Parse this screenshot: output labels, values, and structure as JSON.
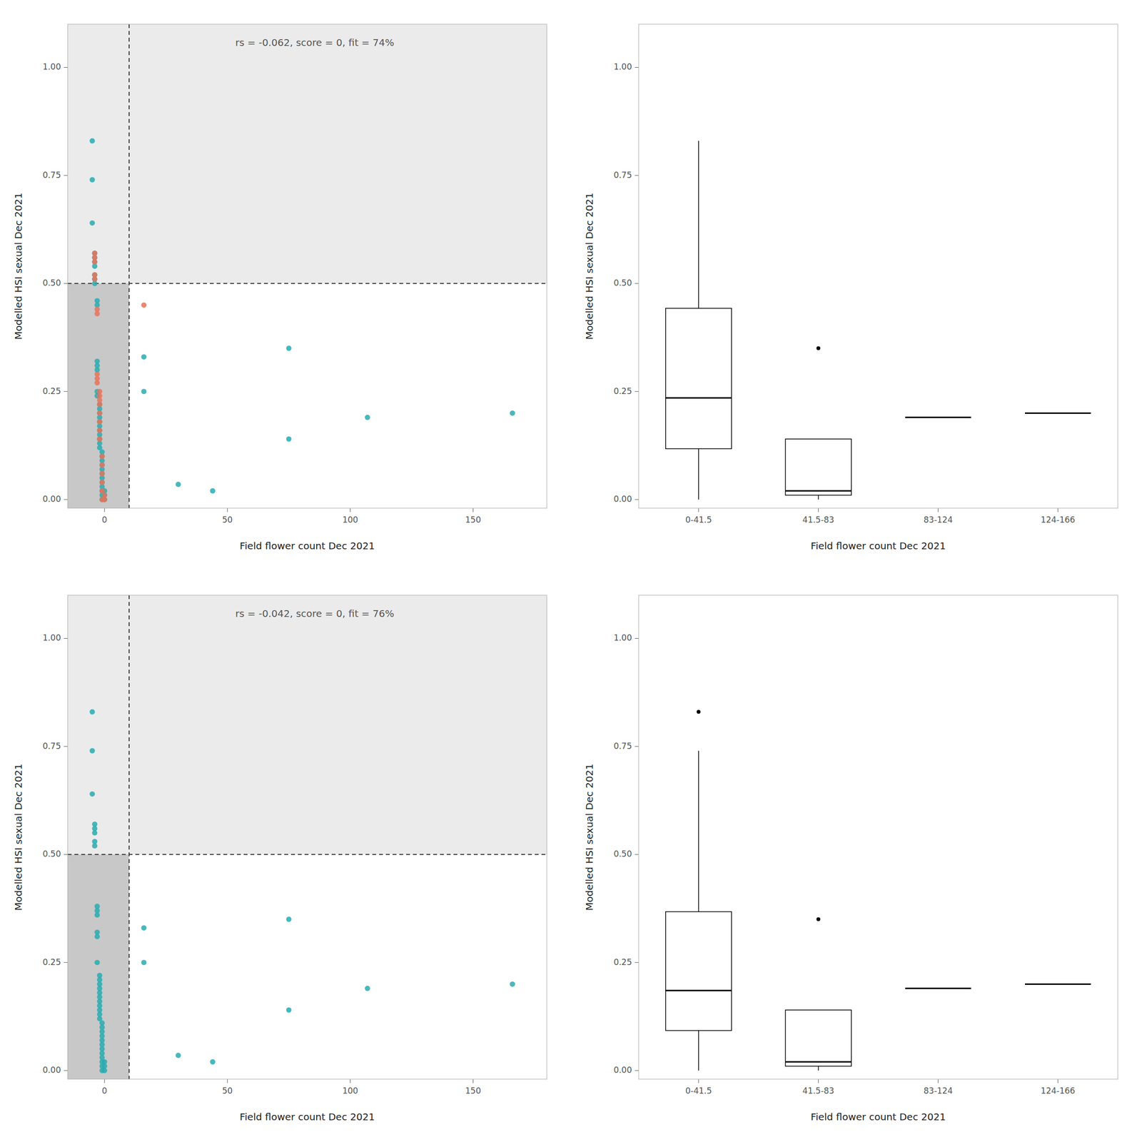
{
  "chart_data": [
    {
      "type": "scatter",
      "annotation": "rs = -0.062, score = 0, fit = 74%",
      "xlabel": "Field flower count Dec 2021",
      "ylabel": "Modelled HSI sexual Dec 2021",
      "xlim": [
        -15,
        180
      ],
      "ylim": [
        -0.02,
        1.1
      ],
      "xticks": [
        0,
        50,
        100,
        150
      ],
      "yticks": [
        {
          "value": 0,
          "label": "0.00"
        },
        {
          "value": 0.25,
          "label": "0.25"
        },
        {
          "value": 0.5,
          "label": "0.50"
        },
        {
          "value": 0.75,
          "label": "0.75"
        },
        {
          "value": 1,
          "label": "1.00"
        }
      ],
      "vline": 10,
      "hline": 0.5,
      "shade_colors": [
        "#EBEBEB",
        "#C8C8C8"
      ],
      "series": [
        {
          "color": "#29ABB0",
          "x": [
            -5,
            -5,
            -5,
            -4,
            -4,
            -4,
            -4,
            -4,
            -4,
            -4,
            -3,
            -3,
            -3,
            -3,
            -3,
            -3,
            -3,
            -2,
            -2,
            -2,
            -2,
            -2,
            -2,
            -2,
            -2,
            -2,
            -2,
            -2,
            -1,
            -1,
            -1,
            -1,
            -1,
            -1,
            -1,
            -1,
            -1,
            -1,
            -1,
            -1,
            0,
            0,
            0,
            16,
            16,
            30,
            44,
            75,
            75,
            107,
            166
          ],
          "values": [
            0.83,
            0.74,
            0.64,
            0.57,
            0.56,
            0.55,
            0.54,
            0.52,
            0.51,
            0.5,
            0.46,
            0.45,
            0.32,
            0.31,
            0.3,
            0.25,
            0.24,
            0.22,
            0.21,
            0.2,
            0.19,
            0.18,
            0.17,
            0.16,
            0.15,
            0.14,
            0.13,
            0.12,
            0.11,
            0.1,
            0.09,
            0.08,
            0.07,
            0.06,
            0.05,
            0.04,
            0.03,
            0.02,
            0.01,
            0,
            0,
            0.01,
            0.02,
            0.33,
            0.25,
            0.035,
            0.02,
            0.35,
            0.14,
            0.19,
            0.2
          ]
        },
        {
          "color": "#E8735A",
          "x": [
            -4,
            -4,
            -4,
            -4,
            -4,
            -3,
            -3,
            -3,
            -3,
            -3,
            -2,
            -2,
            -2,
            -2,
            -2,
            -2,
            -2,
            -2,
            -1,
            -1,
            -1,
            -1,
            -1,
            -1,
            0,
            0,
            16
          ],
          "values": [
            0.57,
            0.56,
            0.55,
            0.52,
            0.51,
            0.44,
            0.43,
            0.29,
            0.28,
            0.27,
            0.25,
            0.24,
            0.23,
            0.22,
            0.2,
            0.18,
            0.16,
            0.14,
            0.1,
            0.08,
            0.06,
            0.04,
            0.02,
            0,
            0,
            0.01,
            0.45
          ]
        }
      ]
    },
    {
      "type": "box",
      "xlabel": "Field flower count Dec 2021",
      "ylabel": "Modelled HSI sexual Dec 2021",
      "categories": [
        "0-41.5",
        "41.5-83",
        "83-124",
        "124-166"
      ],
      "ylim": [
        -0.02,
        1.1
      ],
      "yticks": [
        {
          "value": 0,
          "label": "0.00"
        },
        {
          "value": 0.25,
          "label": "0.25"
        },
        {
          "value": 0.5,
          "label": "0.50"
        },
        {
          "value": 0.75,
          "label": "0.75"
        },
        {
          "value": 1,
          "label": "1.00"
        }
      ],
      "color": "#000000",
      "median": [
        0.235,
        0.02,
        0.19,
        0.2
      ],
      "q1": [
        0.1175,
        0.01,
        0.19,
        0.2
      ],
      "q3": [
        0.4425,
        0.14,
        0.19,
        0.2
      ],
      "whisker_low": [
        0,
        0,
        0.19,
        0.2
      ],
      "whisker_high": [
        0.83,
        0.14,
        0.19,
        0.2
      ],
      "outliers": [
        [],
        [
          0.35
        ],
        [],
        []
      ]
    },
    {
      "type": "scatter",
      "annotation": "rs = -0.042, score = 0, fit = 76%",
      "xlabel": "Field flower count Dec 2021",
      "ylabel": "Modelled HSI sexual Dec 2021",
      "xlim": [
        -15,
        180
      ],
      "ylim": [
        -0.02,
        1.1
      ],
      "xticks": [
        0,
        50,
        100,
        150
      ],
      "yticks": [
        {
          "value": 0,
          "label": "0.00"
        },
        {
          "value": 0.25,
          "label": "0.25"
        },
        {
          "value": 0.5,
          "label": "0.50"
        },
        {
          "value": 0.75,
          "label": "0.75"
        },
        {
          "value": 1,
          "label": "1.00"
        }
      ],
      "vline": 10,
      "hline": 0.5,
      "shade_colors": [
        "#EBEBEB",
        "#C8C8C8"
      ],
      "series": [
        {
          "color": "#29ABB0",
          "x": [
            -5,
            -5,
            -5,
            -4,
            -4,
            -4,
            -4,
            -4,
            -3,
            -3,
            -3,
            -3,
            -3,
            -3,
            -2,
            -2,
            -2,
            -2,
            -2,
            -2,
            -2,
            -2,
            -2,
            -2,
            -2,
            -1,
            -1,
            -1,
            -1,
            -1,
            -1,
            -1,
            -1,
            -1,
            -1,
            -1,
            -1,
            0,
            0,
            0,
            16,
            16,
            30,
            44,
            75,
            75,
            107,
            166
          ],
          "values": [
            0.83,
            0.74,
            0.64,
            0.57,
            0.56,
            0.55,
            0.53,
            0.52,
            0.38,
            0.37,
            0.36,
            0.32,
            0.31,
            0.25,
            0.22,
            0.21,
            0.2,
            0.19,
            0.18,
            0.17,
            0.16,
            0.15,
            0.14,
            0.13,
            0.12,
            0.11,
            0.1,
            0.09,
            0.08,
            0.07,
            0.06,
            0.05,
            0.04,
            0.03,
            0.02,
            0.01,
            0,
            0,
            0.01,
            0.02,
            0.33,
            0.25,
            0.035,
            0.02,
            0.35,
            0.14,
            0.19,
            0.2
          ]
        }
      ]
    },
    {
      "type": "box",
      "xlabel": "Field flower count Dec 2021",
      "ylabel": "Modelled HSI sexual Dec 2021",
      "categories": [
        "0-41.5",
        "41.5-83",
        "83-124",
        "124-166"
      ],
      "ylim": [
        -0.02,
        1.1
      ],
      "yticks": [
        {
          "value": 0,
          "label": "0.00"
        },
        {
          "value": 0.25,
          "label": "0.25"
        },
        {
          "value": 0.5,
          "label": "0.50"
        },
        {
          "value": 0.75,
          "label": "0.75"
        },
        {
          "value": 1,
          "label": "1.00"
        }
      ],
      "color": "#000000",
      "median": [
        0.185,
        0.02,
        0.19,
        0.2
      ],
      "q1": [
        0.0925,
        0.01,
        0.19,
        0.2
      ],
      "q3": [
        0.3675,
        0.14,
        0.19,
        0.2
      ],
      "whisker_low": [
        0,
        0,
        0.19,
        0.2
      ],
      "whisker_high": [
        0.74,
        0.14,
        0.19,
        0.2
      ],
      "outliers": [
        [
          0.83
        ],
        [
          0.35
        ],
        [],
        []
      ]
    }
  ]
}
